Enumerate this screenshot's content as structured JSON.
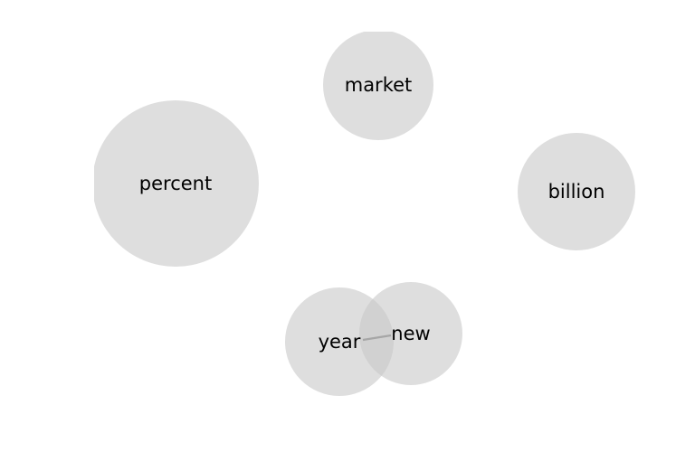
{
  "graph": {
    "nodes": [
      {
        "id": "percent",
        "label": "percent"
      },
      {
        "id": "market",
        "label": "market"
      },
      {
        "id": "billion",
        "label": "billion"
      },
      {
        "id": "year",
        "label": "year"
      },
      {
        "id": "new",
        "label": "new"
      }
    ],
    "edges": [
      {
        "source": "year",
        "target": "new"
      }
    ],
    "colors": {
      "node_fill": "#c8c8c8",
      "edge": "#a6a6a6",
      "label": "#000000"
    }
  }
}
